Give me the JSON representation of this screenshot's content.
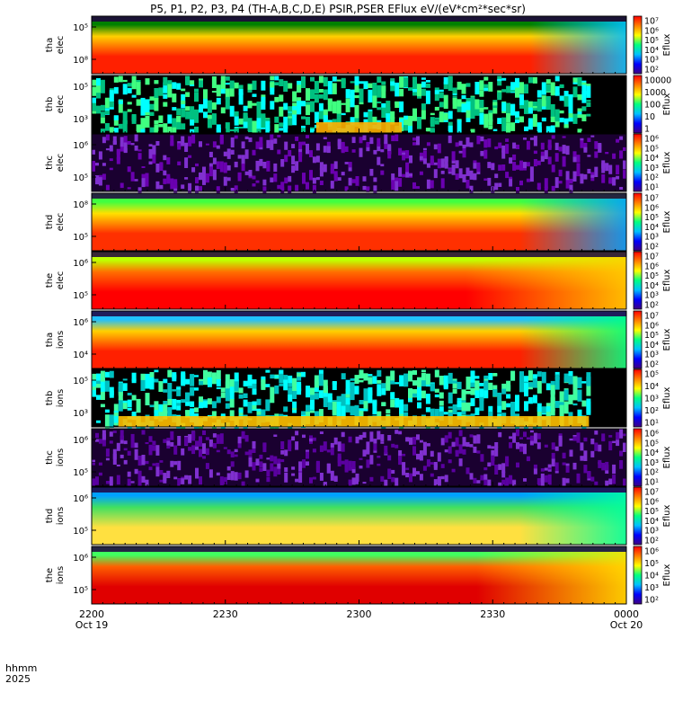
{
  "title": "P5, P1, P2, P3, P4 (TH-A,B,C,D,E) PSIR,PSER EFlux eV/(eV*cm²*sec*sr)",
  "xaxis": {
    "prefix_top": "hhmm",
    "prefix_bottom": "2025",
    "ticks": [
      {
        "label": "2200",
        "sub": "Oct 19",
        "t": 0
      },
      {
        "label": "2230",
        "sub": "",
        "t": 30
      },
      {
        "label": "2300",
        "sub": "",
        "t": 60
      },
      {
        "label": "2330",
        "sub": "",
        "t": 90
      },
      {
        "label": "0000",
        "sub": "Oct 20",
        "t": 120
      }
    ],
    "range_minutes": [
      0,
      120
    ]
  },
  "colorbar_label": "Eflux",
  "chart_data": {
    "type": "heatmap",
    "x_unit": "UT time (minutes after 2025-10-19 22:00)",
    "x_range": [
      0,
      120
    ],
    "y_scale": "log",
    "panels": [
      {
        "probe": "tha",
        "species": "elec",
        "ylabel": [
          "tha",
          "elec"
        ],
        "y_ticks": [
          "10⁵",
          "10⁸"
        ],
        "cbar_ticks": [
          "10⁷",
          "10⁶",
          "10⁵",
          "10⁴",
          "10³",
          "10²"
        ],
        "pattern": "broad",
        "colors": [
          "#008000",
          "#ffd000",
          "#ff2000",
          "#00c0ff"
        ],
        "fade_start": 0.82
      },
      {
        "probe": "thb",
        "species": "elec",
        "ylabel": [
          "thb",
          "elec"
        ],
        "y_ticks": [
          "10⁵",
          "10³"
        ],
        "cbar_ticks": [
          "10000",
          "1000",
          "100",
          "10",
          "1"
        ],
        "pattern": "noise",
        "noise_colors": [
          "#000000",
          "#00c080",
          "#40ff80",
          "#00ffff"
        ],
        "blob": {
          "start": 0.42,
          "end": 0.58,
          "color": "#ffb000"
        },
        "cutoff": 0.93
      },
      {
        "probe": "thc",
        "species": "elec",
        "ylabel": [
          "thc",
          "elec"
        ],
        "y_ticks": [
          "10⁶",
          "10⁵"
        ],
        "cbar_ticks": [
          "10⁶",
          "10⁵",
          "10⁴",
          "10³",
          "10²",
          "10¹"
        ],
        "pattern": "sparse",
        "noise_colors": [
          "#1a0030",
          "#6a00b0",
          "#8030d0"
        ]
      },
      {
        "probe": "thd",
        "species": "elec",
        "ylabel": [
          "thd",
          "elec"
        ],
        "y_ticks": [
          "10⁸",
          "10⁵"
        ],
        "cbar_ticks": [
          "10⁷",
          "10⁶",
          "10⁵",
          "10⁴",
          "10³",
          "10²"
        ],
        "pattern": "broad",
        "colors": [
          "#40ff40",
          "#ffe000",
          "#ff3000",
          "#00a0ff"
        ],
        "fade_start": 0.8
      },
      {
        "probe": "the",
        "species": "elec",
        "ylabel": [
          "the",
          "elec"
        ],
        "y_ticks": [
          "10⁶",
          "10⁵"
        ],
        "cbar_ticks": [
          "10⁷",
          "10⁶",
          "10⁵",
          "10⁴",
          "10³",
          "10²"
        ],
        "pattern": "broad",
        "colors": [
          "#c0ff00",
          "#ff7000",
          "#ff0000",
          "#ffd000"
        ],
        "fade_start": 0.7
      },
      {
        "probe": "tha",
        "species": "ions",
        "ylabel": [
          "tha",
          "ions"
        ],
        "y_ticks": [
          "10⁶",
          "10⁴"
        ],
        "cbar_ticks": [
          "10⁷",
          "10⁶",
          "10⁵",
          "10⁴",
          "10³",
          "10²"
        ],
        "pattern": "broad",
        "colors": [
          "#20c0ff",
          "#ffd000",
          "#ff2000",
          "#00ff80"
        ],
        "fade_start": 0.8
      },
      {
        "probe": "thb",
        "species": "ions",
        "ylabel": [
          "thb",
          "ions"
        ],
        "y_ticks": [
          "10⁵",
          "10³"
        ],
        "cbar_ticks": [
          "10⁵",
          "10⁴",
          "10³",
          "10²",
          "10¹"
        ],
        "pattern": "noise",
        "noise_colors": [
          "#000000",
          "#00c0c0",
          "#40ffa0",
          "#00ffff"
        ],
        "blob": {
          "start": 0.05,
          "end": 0.93,
          "color": "#ffc000"
        },
        "cutoff": 0.93
      },
      {
        "probe": "thc",
        "species": "ions",
        "ylabel": [
          "thc",
          "ions"
        ],
        "y_ticks": [
          "10⁶",
          "10⁵"
        ],
        "cbar_ticks": [
          "10⁶",
          "10⁵",
          "10⁴",
          "10³",
          "10²",
          "10¹"
        ],
        "pattern": "sparse",
        "noise_colors": [
          "#1a0030",
          "#5a00a0",
          "#8030d0"
        ]
      },
      {
        "probe": "thd",
        "species": "ions",
        "ylabel": [
          "thd",
          "ions"
        ],
        "y_ticks": [
          "10⁶",
          "10⁵"
        ],
        "cbar_ticks": [
          "10⁷",
          "10⁶",
          "10⁵",
          "10⁴",
          "10³",
          "10²"
        ],
        "pattern": "broad",
        "colors": [
          "#00a0ff",
          "#40e060",
          "#ffe040",
          "#00ffa0"
        ],
        "fade_start": 0.8
      },
      {
        "probe": "the",
        "species": "ions",
        "ylabel": [
          "the",
          "ions"
        ],
        "y_ticks": [
          "10⁶",
          "10⁵"
        ],
        "cbar_ticks": [
          "10⁶",
          "10⁵",
          "10⁴",
          "10³",
          "10²"
        ],
        "pattern": "broad",
        "colors": [
          "#40ff60",
          "#ff6000",
          "#e00000",
          "#ffe000"
        ],
        "fade_start": 0.72
      }
    ]
  }
}
